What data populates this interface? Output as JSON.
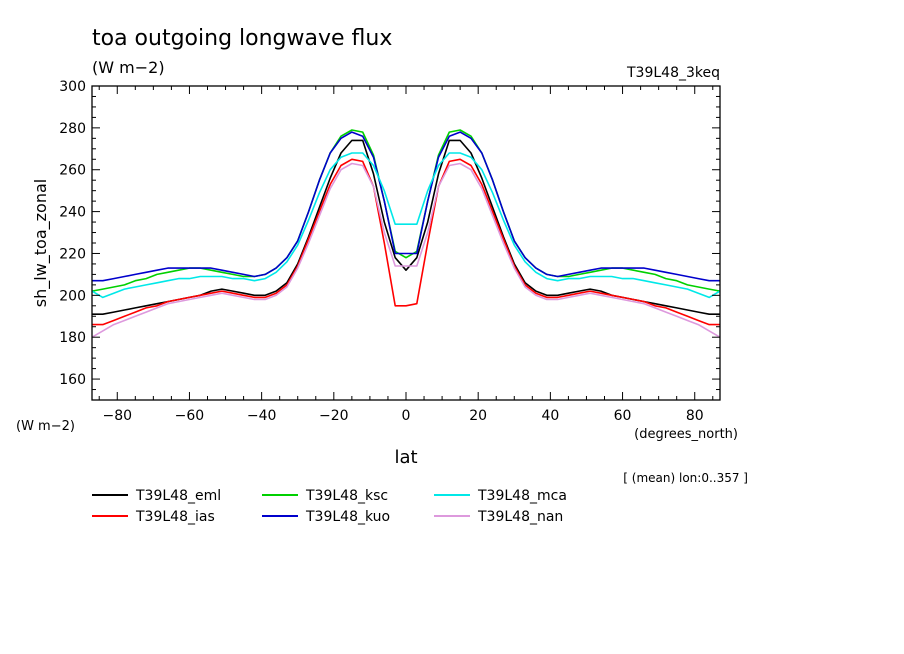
{
  "chart_data": {
    "type": "line",
    "title": "toa outgoing longwave flux",
    "units": "(W m−2)",
    "experiment": "T39L48_3keq",
    "ylabel": "sh_lw_toa_zonal",
    "yunits": "(W m−2)",
    "xlabel": "lat",
    "xunits": "(degrees_north)",
    "note": "[ (mean) lon:0..357 ]",
    "xlim": [
      -87,
      87
    ],
    "ylim": [
      150,
      300
    ],
    "xticks": [
      -80,
      -60,
      -40,
      -20,
      0,
      20,
      40,
      60,
      80
    ],
    "yticks": [
      160,
      180,
      200,
      220,
      240,
      260,
      280,
      300
    ],
    "x": [
      -87,
      -84,
      -81,
      -78,
      -75,
      -72,
      -69,
      -66,
      -63,
      -60,
      -57,
      -54,
      -51,
      -48,
      -45,
      -42,
      -39,
      -36,
      -33,
      -30,
      -27,
      -24,
      -21,
      -18,
      -15,
      -12,
      -9,
      -6,
      -3,
      0,
      3,
      6,
      9,
      12,
      15,
      18,
      21,
      24,
      27,
      30,
      33,
      36,
      39,
      42,
      45,
      48,
      51,
      54,
      57,
      60,
      63,
      66,
      69,
      72,
      75,
      78,
      81,
      84,
      87
    ],
    "series": [
      {
        "name": "T39L48_eml",
        "color": "#000000",
        "values": [
          191,
          191,
          192,
          193,
          194,
          195,
          196,
          197,
          198,
          199,
          200,
          202,
          203,
          202,
          201,
          200,
          200,
          202,
          206,
          215,
          228,
          242,
          256,
          268,
          274,
          274,
          258,
          235,
          218,
          212,
          218,
          235,
          258,
          274,
          274,
          268,
          256,
          242,
          228,
          215,
          206,
          202,
          200,
          200,
          201,
          202,
          203,
          202,
          200,
          199,
          198,
          197,
          196,
          195,
          194,
          193,
          192,
          191,
          191
        ]
      },
      {
        "name": "T39L48_ias",
        "color": "#ff0000",
        "values": [
          186,
          186,
          188,
          190,
          192,
          194,
          195,
          197,
          198,
          199,
          200,
          201,
          202,
          201,
          200,
          199,
          199,
          201,
          205,
          214,
          227,
          240,
          253,
          262,
          265,
          264,
          252,
          225,
          195,
          195,
          196,
          225,
          252,
          264,
          265,
          262,
          253,
          240,
          227,
          214,
          205,
          201,
          199,
          199,
          200,
          201,
          202,
          201,
          200,
          199,
          198,
          197,
          195,
          194,
          192,
          190,
          188,
          186,
          186
        ]
      },
      {
        "name": "T39L48_ksc",
        "color": "#00d000",
        "values": [
          202,
          203,
          204,
          205,
          207,
          208,
          210,
          211,
          212,
          213,
          213,
          212,
          211,
          210,
          209,
          209,
          210,
          213,
          218,
          226,
          240,
          255,
          268,
          276,
          279,
          278,
          267,
          245,
          221,
          218,
          221,
          245,
          267,
          278,
          279,
          276,
          268,
          255,
          240,
          226,
          218,
          213,
          210,
          209,
          209,
          210,
          211,
          212,
          213,
          213,
          212,
          211,
          210,
          208,
          207,
          205,
          204,
          203,
          202
        ]
      },
      {
        "name": "T39L48_kuo",
        "color": "#0000cc",
        "values": [
          207,
          207,
          208,
          209,
          210,
          211,
          212,
          213,
          213,
          213,
          213,
          213,
          212,
          211,
          210,
          209,
          210,
          213,
          218,
          226,
          240,
          255,
          268,
          275,
          278,
          276,
          266,
          245,
          220,
          220,
          220,
          245,
          266,
          276,
          278,
          275,
          268,
          255,
          240,
          226,
          218,
          213,
          210,
          209,
          210,
          211,
          212,
          213,
          213,
          213,
          213,
          213,
          212,
          211,
          210,
          209,
          208,
          207,
          207
        ]
      },
      {
        "name": "T39L48_mca",
        "color": "#00e8e8",
        "values": [
          202,
          199,
          201,
          203,
          204,
          205,
          206,
          207,
          208,
          208,
          209,
          209,
          209,
          208,
          208,
          207,
          208,
          211,
          216,
          224,
          236,
          249,
          260,
          266,
          268,
          268,
          262,
          250,
          234,
          234,
          234,
          250,
          262,
          268,
          268,
          266,
          260,
          249,
          236,
          224,
          216,
          211,
          208,
          207,
          208,
          208,
          209,
          209,
          209,
          208,
          208,
          207,
          206,
          205,
          204,
          203,
          201,
          199,
          202
        ]
      },
      {
        "name": "T39L48_nan",
        "color": "#dd99dd",
        "values": [
          180,
          183,
          186,
          188,
          190,
          192,
          194,
          196,
          197,
          198,
          199,
          200,
          201,
          200,
          199,
          198,
          198,
          200,
          204,
          213,
          225,
          238,
          251,
          260,
          263,
          262,
          252,
          230,
          214,
          214,
          214,
          230,
          252,
          262,
          263,
          260,
          251,
          238,
          225,
          213,
          204,
          200,
          198,
          198,
          199,
          200,
          201,
          200,
          199,
          198,
          197,
          196,
          194,
          192,
          190,
          188,
          186,
          183,
          180
        ]
      }
    ],
    "grid": false,
    "legend_position": "bottom-left"
  }
}
